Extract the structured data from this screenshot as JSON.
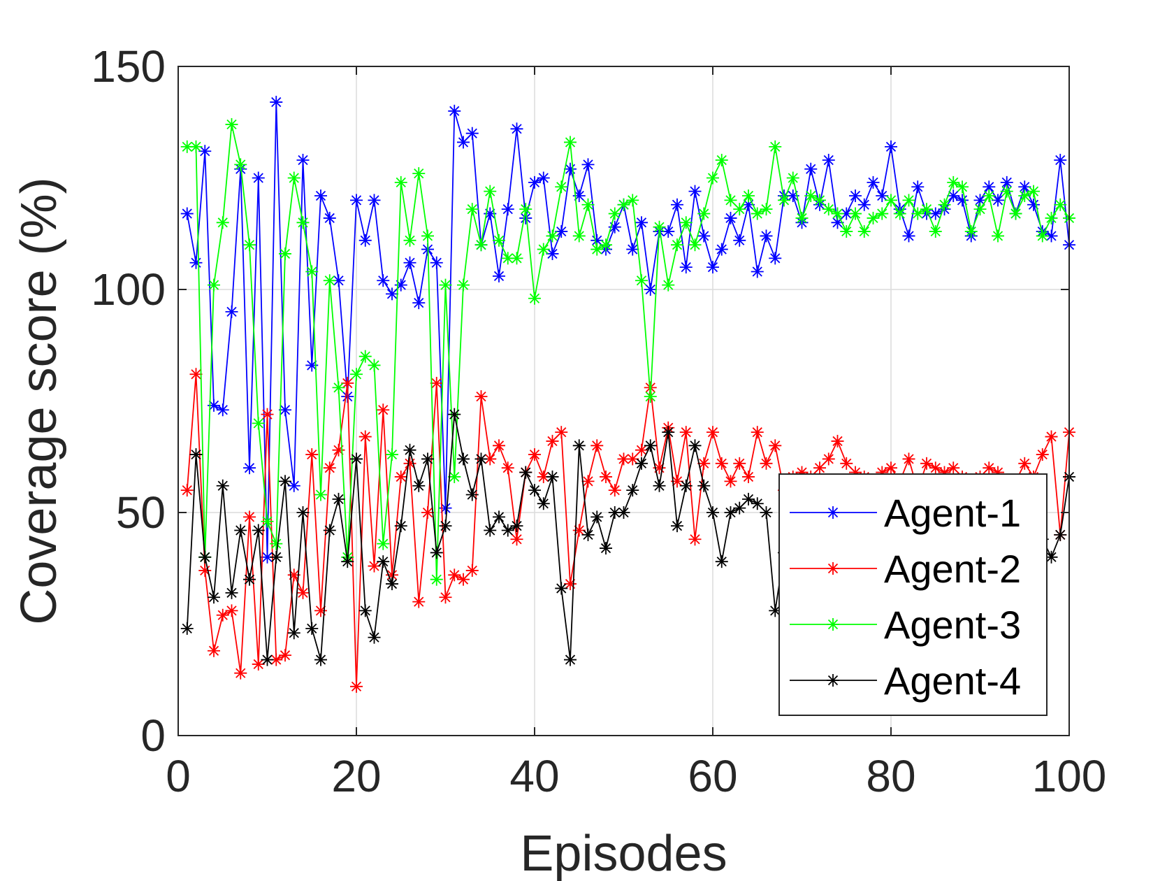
{
  "chart_data": {
    "type": "line",
    "xlabel": "Episodes",
    "ylabel": "Coverage score (%)",
    "xlim": [
      0,
      100
    ],
    "ylim": [
      0,
      150
    ],
    "xticks": [
      0,
      20,
      40,
      60,
      80,
      100
    ],
    "yticks": [
      0,
      50,
      100,
      150
    ],
    "xtick_labels": [
      "0",
      "20",
      "40",
      "60",
      "80",
      "100"
    ],
    "ytick_labels": [
      "0",
      "50",
      "100",
      "150"
    ],
    "grid": true,
    "legend_position": "lower-right",
    "marker": "asterisk",
    "series": [
      {
        "name": "Agent-1",
        "color": "#0000ff",
        "x": [
          1,
          2,
          3,
          4,
          5,
          6,
          7,
          8,
          9,
          10,
          11,
          12,
          13,
          14,
          15,
          16,
          17,
          18,
          19,
          20,
          21,
          22,
          23,
          24,
          25,
          26,
          27,
          28,
          29,
          30,
          31,
          32,
          33,
          34,
          35,
          36,
          37,
          38,
          39,
          40,
          41,
          42,
          43,
          44,
          45,
          46,
          47,
          48,
          49,
          50,
          51,
          52,
          53,
          54,
          55,
          56,
          57,
          58,
          59,
          60,
          61,
          62,
          63,
          64,
          65,
          66,
          67,
          68,
          69,
          70,
          71,
          72,
          73,
          74,
          75,
          76,
          77,
          78,
          79,
          80,
          81,
          82,
          83,
          84,
          85,
          86,
          87,
          88,
          89,
          90,
          91,
          92,
          93,
          94,
          95,
          96,
          97,
          98,
          99,
          100
        ],
        "values": [
          117,
          106,
          131,
          74,
          73,
          95,
          127,
          60,
          125,
          40,
          142,
          73,
          56,
          129,
          83,
          121,
          116,
          102,
          76,
          120,
          111,
          120,
          102,
          99,
          101,
          106,
          97,
          109,
          106,
          51,
          140,
          133,
          135,
          110,
          117,
          103,
          118,
          136,
          116,
          124,
          125,
          108,
          113,
          127,
          121,
          128,
          111,
          109,
          114,
          119,
          109,
          115,
          100,
          113,
          113,
          119,
          105,
          122,
          112,
          105,
          109,
          116,
          111,
          119,
          104,
          112,
          107,
          121,
          121,
          115,
          127,
          119,
          129,
          115,
          117,
          121,
          119,
          124,
          121,
          132,
          118,
          112,
          123,
          117,
          117,
          118,
          121,
          120,
          112,
          120,
          123,
          120,
          124,
          117,
          123,
          119,
          113,
          112,
          129,
          110
        ]
      },
      {
        "name": "Agent-2",
        "color": "#ff0000",
        "x": [
          1,
          2,
          3,
          4,
          5,
          6,
          7,
          8,
          9,
          10,
          11,
          12,
          13,
          14,
          15,
          16,
          17,
          18,
          19,
          20,
          21,
          22,
          23,
          24,
          25,
          26,
          27,
          28,
          29,
          30,
          31,
          32,
          33,
          34,
          35,
          36,
          37,
          38,
          39,
          40,
          41,
          42,
          43,
          44,
          45,
          46,
          47,
          48,
          49,
          50,
          51,
          52,
          53,
          54,
          55,
          56,
          57,
          58,
          59,
          60,
          61,
          62,
          63,
          64,
          65,
          66,
          67,
          68,
          69,
          70,
          71,
          72,
          73,
          74,
          75,
          76,
          77,
          78,
          79,
          80,
          81,
          82,
          83,
          84,
          85,
          86,
          87,
          88,
          89,
          90,
          91,
          92,
          93,
          94,
          95,
          96,
          97,
          98,
          99,
          100
        ],
        "values": [
          55,
          81,
          37,
          19,
          27,
          28,
          14,
          49,
          16,
          72,
          17,
          18,
          36,
          32,
          63,
          28,
          60,
          64,
          79,
          11,
          67,
          38,
          73,
          36,
          58,
          61,
          30,
          50,
          79,
          31,
          36,
          35,
          37,
          76,
          62,
          65,
          60,
          44,
          59,
          63,
          58,
          66,
          68,
          34,
          46,
          57,
          65,
          58,
          55,
          62,
          62,
          64,
          78,
          60,
          69,
          57,
          68,
          44,
          61,
          68,
          61,
          57,
          61,
          58,
          68,
          61,
          65,
          55,
          58,
          59,
          58,
          60,
          62,
          66,
          61,
          59,
          58,
          56,
          59,
          60,
          57,
          62,
          55,
          61,
          60,
          59,
          60,
          58,
          57,
          58,
          60,
          59,
          56,
          57,
          61,
          58,
          63,
          67,
          45,
          68
        ]
      },
      {
        "name": "Agent-3",
        "color": "#00ff00",
        "x": [
          1,
          2,
          3,
          4,
          5,
          6,
          7,
          8,
          9,
          10,
          11,
          12,
          13,
          14,
          15,
          16,
          17,
          18,
          19,
          20,
          21,
          22,
          23,
          24,
          25,
          26,
          27,
          28,
          29,
          30,
          31,
          32,
          33,
          34,
          35,
          36,
          37,
          38,
          39,
          40,
          41,
          42,
          43,
          44,
          45,
          46,
          47,
          48,
          49,
          50,
          51,
          52,
          53,
          54,
          55,
          56,
          57,
          58,
          59,
          60,
          61,
          62,
          63,
          64,
          65,
          66,
          67,
          68,
          69,
          70,
          71,
          72,
          73,
          74,
          75,
          76,
          77,
          78,
          79,
          80,
          81,
          82,
          83,
          84,
          85,
          86,
          87,
          88,
          89,
          90,
          91,
          92,
          93,
          94,
          95,
          96,
          97,
          98,
          99,
          100
        ],
        "values": [
          132,
          132,
          40,
          101,
          115,
          137,
          128,
          110,
          70,
          48,
          43,
          108,
          125,
          115,
          104,
          54,
          102,
          78,
          40,
          81,
          85,
          83,
          43,
          63,
          124,
          111,
          126,
          112,
          35,
          101,
          58,
          101,
          118,
          110,
          122,
          111,
          107,
          107,
          118,
          98,
          109,
          112,
          123,
          133,
          112,
          119,
          109,
          110,
          117,
          119,
          120,
          102,
          76,
          114,
          101,
          110,
          115,
          110,
          117,
          125,
          129,
          120,
          118,
          121,
          117,
          118,
          132,
          120,
          125,
          116,
          121,
          120,
          118,
          117,
          113,
          117,
          113,
          116,
          117,
          120,
          117,
          120,
          117,
          118,
          113,
          119,
          124,
          123,
          113,
          118,
          121,
          112,
          122,
          117,
          121,
          122,
          112,
          116,
          119,
          116
        ]
      },
      {
        "name": "Agent-4",
        "color": "#000000",
        "x": [
          1,
          2,
          3,
          4,
          5,
          6,
          7,
          8,
          9,
          10,
          11,
          12,
          13,
          14,
          15,
          16,
          17,
          18,
          19,
          20,
          21,
          22,
          23,
          24,
          25,
          26,
          27,
          28,
          29,
          30,
          31,
          32,
          33,
          34,
          35,
          36,
          37,
          38,
          39,
          40,
          41,
          42,
          43,
          44,
          45,
          46,
          47,
          48,
          49,
          50,
          51,
          52,
          53,
          54,
          55,
          56,
          57,
          58,
          59,
          60,
          61,
          62,
          63,
          64,
          65,
          66,
          67,
          68,
          69,
          70,
          71,
          72,
          73,
          74,
          75,
          76,
          77,
          78,
          79,
          80,
          81,
          82,
          83,
          84,
          85,
          86,
          87,
          88,
          89,
          90,
          91,
          92,
          93,
          94,
          95,
          96,
          97,
          98,
          99,
          100
        ],
        "values": [
          24,
          63,
          40,
          31,
          56,
          32,
          46,
          35,
          46,
          17,
          40,
          57,
          23,
          50,
          24,
          17,
          46,
          53,
          39,
          62,
          28,
          22,
          39,
          34,
          47,
          64,
          56,
          62,
          41,
          47,
          72,
          62,
          54,
          62,
          46,
          49,
          46,
          47,
          59,
          55,
          52,
          58,
          33,
          17,
          65,
          45,
          49,
          42,
          50,
          50,
          55,
          61,
          65,
          56,
          68,
          47,
          56,
          65,
          56,
          50,
          39,
          50,
          51,
          53,
          52,
          50,
          28,
          41,
          44,
          43,
          35,
          38,
          37,
          40,
          46,
          47,
          43,
          44,
          50,
          46,
          42,
          45,
          40,
          43,
          47,
          44,
          46,
          42,
          45,
          46,
          44,
          46,
          44,
          42,
          43,
          45,
          44,
          40,
          45,
          58
        ]
      }
    ]
  }
}
